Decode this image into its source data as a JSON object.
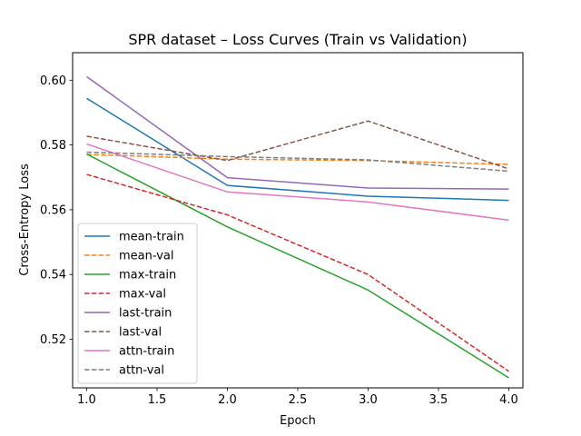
{
  "chart_data": {
    "type": "line",
    "title": "SPR dataset – Loss Curves (Train vs Validation)",
    "xlabel": "Epoch",
    "ylabel": "Cross-Entropy Loss",
    "xlim": [
      0.9,
      4.1
    ],
    "ylim": [
      0.505,
      0.6085
    ],
    "xticks": [
      1.0,
      1.5,
      2.0,
      2.5,
      3.0,
      3.5,
      4.0
    ],
    "xtick_labels": [
      "1.0",
      "1.5",
      "2.0",
      "2.5",
      "3.0",
      "3.5",
      "4.0"
    ],
    "yticks": [
      0.52,
      0.54,
      0.56,
      0.58,
      0.6
    ],
    "ytick_labels": [
      "0.52",
      "0.54",
      "0.56",
      "0.58",
      "0.60"
    ],
    "grid": false,
    "legend_position": "lower-left",
    "x": [
      1,
      2,
      3,
      4
    ],
    "series": [
      {
        "name": "mean-train",
        "color": "#1f77b4",
        "dash": "solid",
        "values": [
          0.5944,
          0.5675,
          0.5642,
          0.5629
        ]
      },
      {
        "name": "mean-val",
        "color": "#ff7f0e",
        "dash": "dashed",
        "values": [
          0.5771,
          0.5756,
          0.5752,
          0.574
        ]
      },
      {
        "name": "max-train",
        "color": "#2ca02c",
        "dash": "solid",
        "values": [
          0.5772,
          0.5547,
          0.5352,
          0.5081
        ]
      },
      {
        "name": "max-val",
        "color": "#d62728",
        "dash": "dashed",
        "values": [
          0.5709,
          0.5584,
          0.54,
          0.5101
        ]
      },
      {
        "name": "last-train",
        "color": "#9467bd",
        "dash": "solid",
        "values": [
          0.6011,
          0.5699,
          0.5667,
          0.5664
        ]
      },
      {
        "name": "last-val",
        "color": "#8c564b",
        "dash": "dashed",
        "values": [
          0.5827,
          0.5752,
          0.5874,
          0.5726
        ]
      },
      {
        "name": "attn-train",
        "color": "#e377c2",
        "dash": "solid",
        "values": [
          0.5803,
          0.5655,
          0.5624,
          0.5568
        ]
      },
      {
        "name": "attn-val",
        "color": "#7f7f7f",
        "dash": "dashed",
        "values": [
          0.5778,
          0.5764,
          0.5754,
          0.5719
        ]
      }
    ]
  }
}
